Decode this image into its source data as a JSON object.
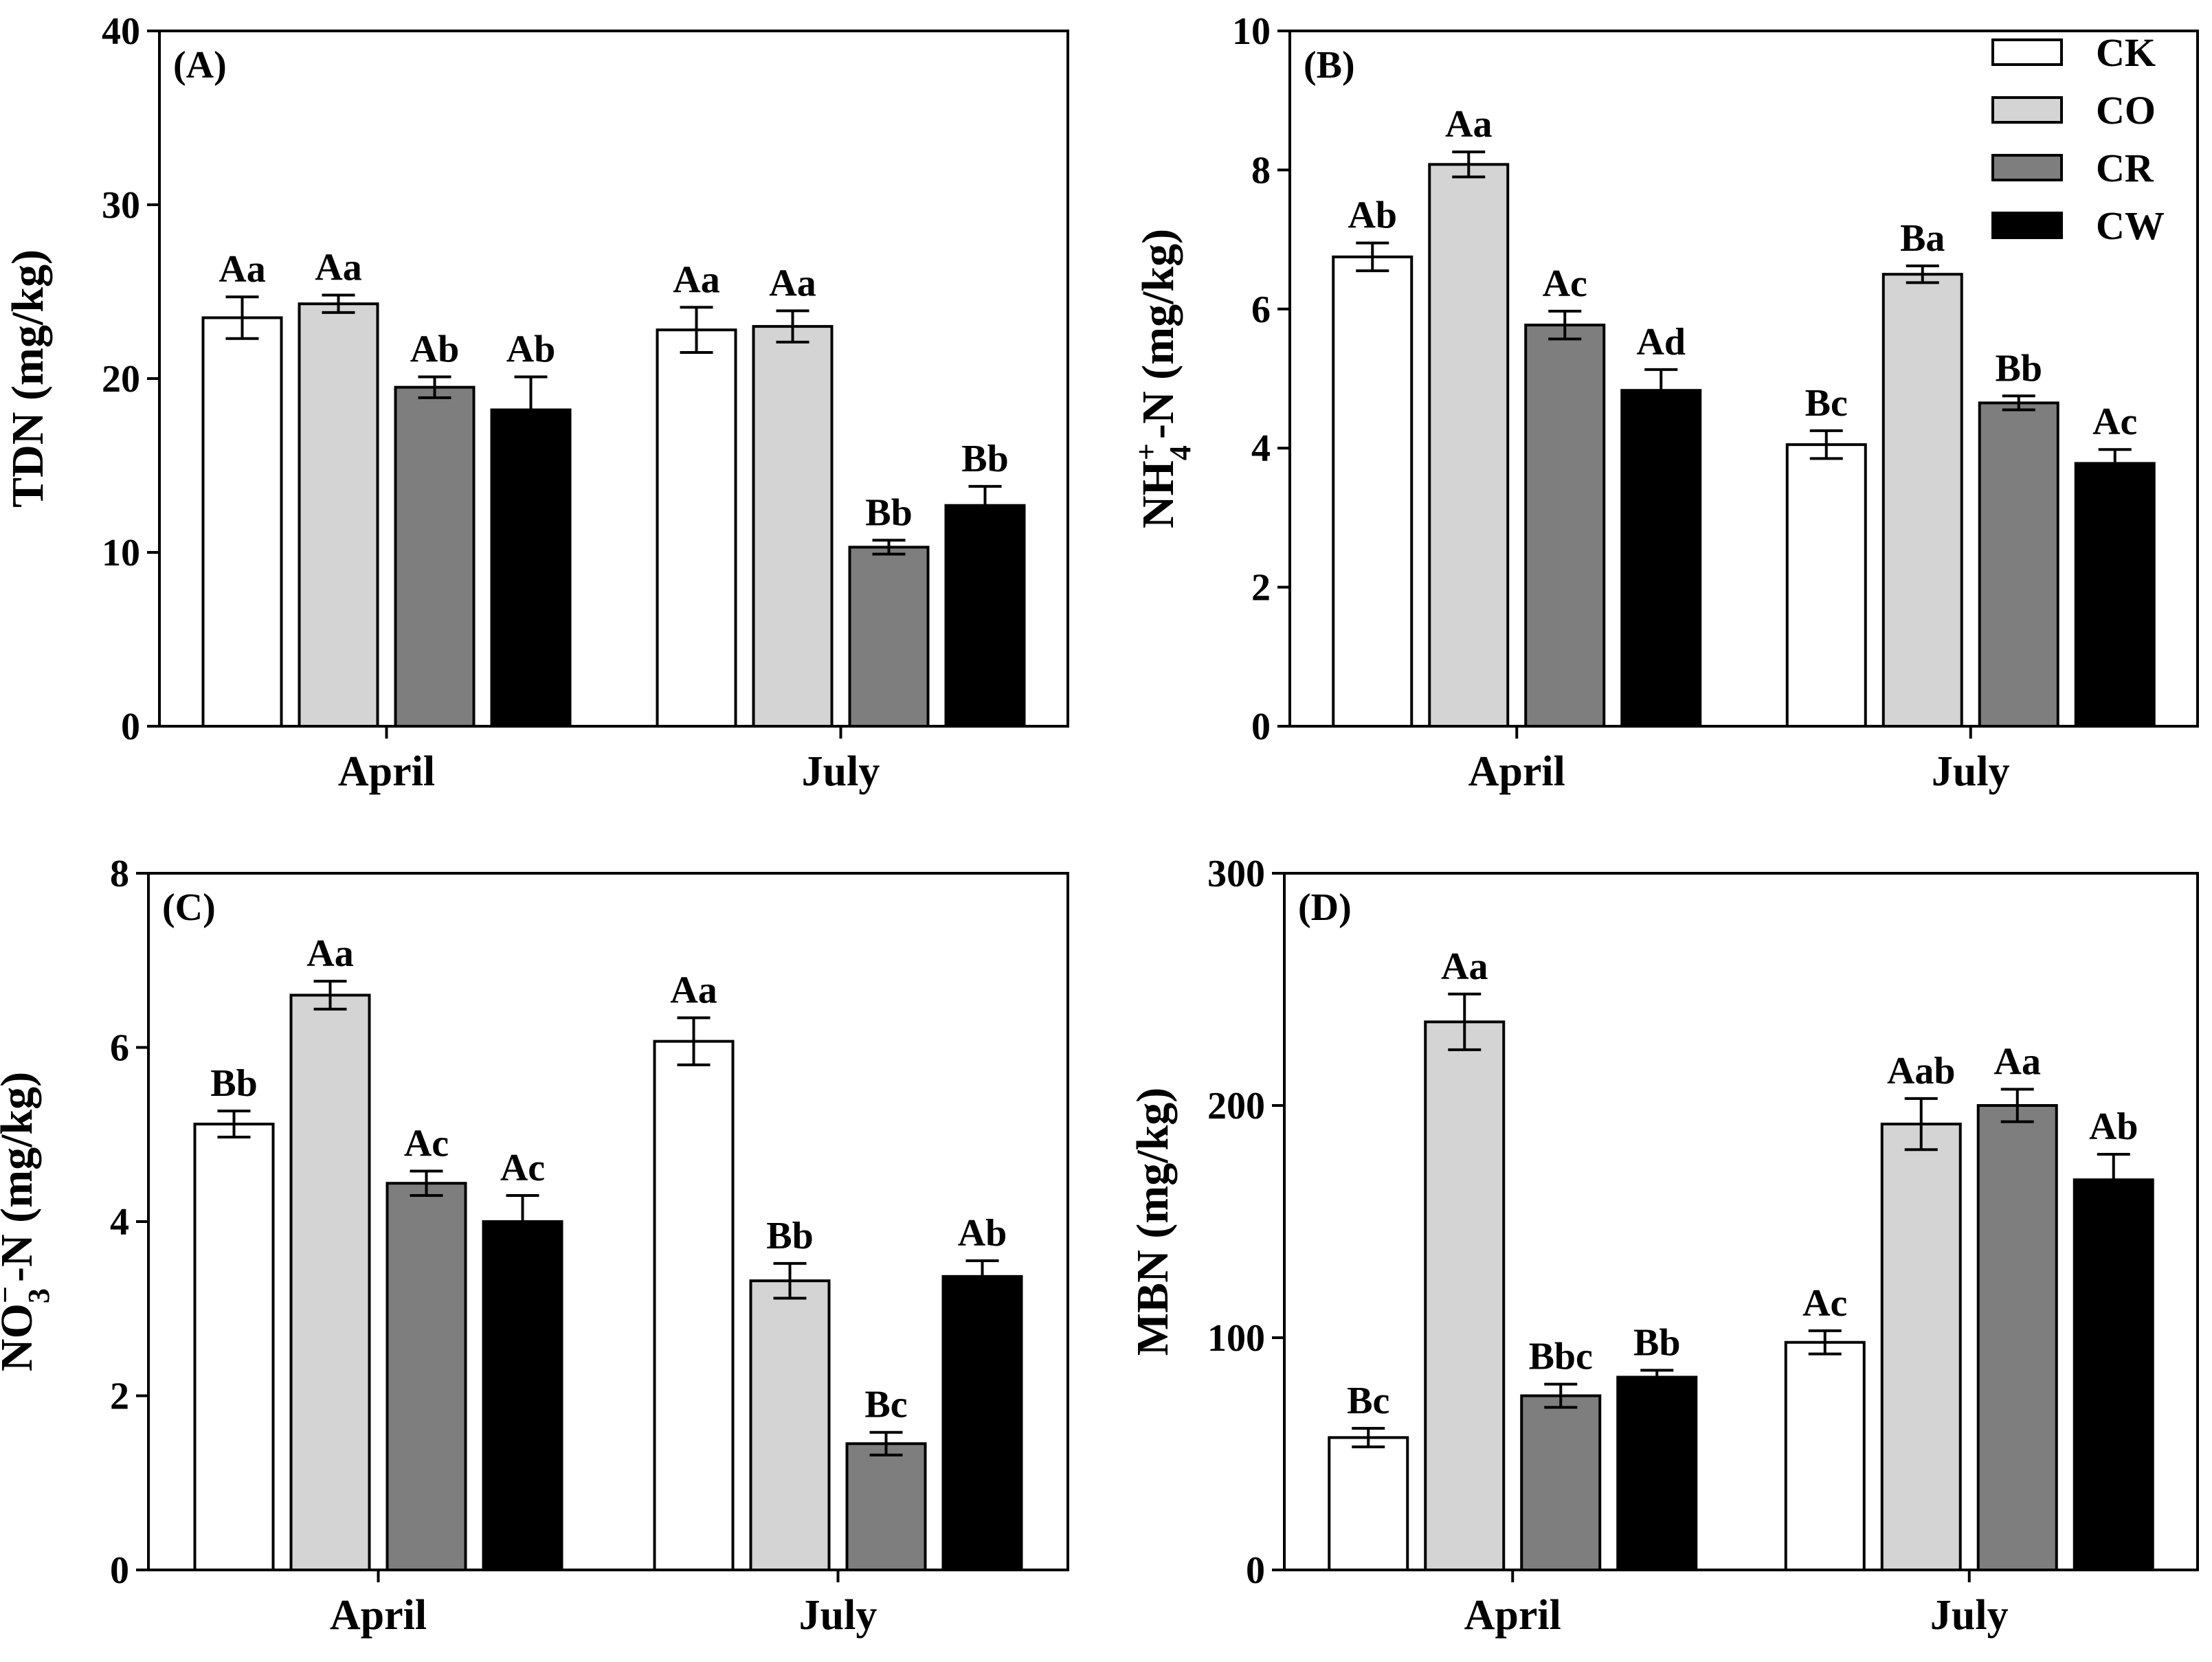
{
  "colors": {
    "CK": "#ffffff",
    "CO": "#d4d4d4",
    "CR": "#7e7e7e",
    "CW": "#000000"
  },
  "chart_data": [
    {
      "type": "bar",
      "panel": "(A)",
      "ylabel": "TDN (mg/kg)",
      "ylim": [
        0,
        40
      ],
      "yticks": [
        0,
        10,
        20,
        30,
        40
      ],
      "categories": [
        "April",
        "July"
      ],
      "series": [
        {
          "name": "CK",
          "values": [
            23.5,
            22.8
          ],
          "errors": [
            1.2,
            1.3
          ],
          "labels": [
            "Aa",
            "Aa"
          ]
        },
        {
          "name": "CO",
          "values": [
            24.3,
            23.0
          ],
          "errors": [
            0.5,
            0.9
          ],
          "labels": [
            "Aa",
            "Aa"
          ]
        },
        {
          "name": "CR",
          "values": [
            19.5,
            10.3
          ],
          "errors": [
            0.6,
            0.4
          ],
          "labels": [
            "Ab",
            "Bb"
          ]
        },
        {
          "name": "CW",
          "values": [
            18.2,
            12.7
          ],
          "errors": [
            1.9,
            1.1
          ],
          "labels": [
            "Ab",
            "Bb"
          ]
        }
      ]
    },
    {
      "type": "bar",
      "panel": "(B)",
      "ylabel_main": "NH",
      "ylabel_sub": "4",
      "ylabel_sup": "+",
      "ylabel_rest": "-N (mg/kg)",
      "ylim": [
        0,
        10
      ],
      "yticks": [
        0,
        2,
        4,
        6,
        8,
        10
      ],
      "categories": [
        "April",
        "July"
      ],
      "legend": [
        "CK",
        "CO",
        "CR",
        "CW"
      ],
      "series": [
        {
          "name": "CK",
          "values": [
            6.75,
            4.05
          ],
          "errors": [
            0.2,
            0.2
          ],
          "labels": [
            "Ab",
            "Bc"
          ]
        },
        {
          "name": "CO",
          "values": [
            8.08,
            6.5
          ],
          "errors": [
            0.18,
            0.12
          ],
          "labels": [
            "Aa",
            "Ba"
          ]
        },
        {
          "name": "CR",
          "values": [
            5.77,
            4.65
          ],
          "errors": [
            0.2,
            0.1
          ],
          "labels": [
            "Ac",
            "Bb"
          ]
        },
        {
          "name": "CW",
          "values": [
            4.83,
            3.78
          ],
          "errors": [
            0.3,
            0.2
          ],
          "labels": [
            "Ad",
            "Ac"
          ]
        }
      ]
    },
    {
      "type": "bar",
      "panel": "(C)",
      "ylabel_main": "NO",
      "ylabel_sub": "3",
      "ylabel_sup": "−",
      "ylabel_rest": "-N (mg/kg)",
      "ylim": [
        0,
        8
      ],
      "yticks": [
        0,
        2,
        4,
        6,
        8
      ],
      "categories": [
        "April",
        "July"
      ],
      "series": [
        {
          "name": "CK",
          "values": [
            5.12,
            6.07
          ],
          "errors": [
            0.15,
            0.27
          ],
          "labels": [
            "Bb",
            "Aa"
          ]
        },
        {
          "name": "CO",
          "values": [
            6.6,
            3.32
          ],
          "errors": [
            0.16,
            0.2
          ],
          "labels": [
            "Aa",
            "Bb"
          ]
        },
        {
          "name": "CR",
          "values": [
            4.44,
            1.45
          ],
          "errors": [
            0.14,
            0.13
          ],
          "labels": [
            "Ac",
            "Bc"
          ]
        },
        {
          "name": "CW",
          "values": [
            4.0,
            3.37
          ],
          "errors": [
            0.3,
            0.18
          ],
          "labels": [
            "Ac",
            "Ab"
          ]
        }
      ]
    },
    {
      "type": "bar",
      "panel": "(D)",
      "ylabel": "MBN (mg/kg)",
      "ylim": [
        0,
        300
      ],
      "yticks": [
        0,
        100,
        200,
        300
      ],
      "categories": [
        "April",
        "July"
      ],
      "series": [
        {
          "name": "CK",
          "values": [
            57,
            98
          ],
          "errors": [
            4,
            5
          ],
          "labels": [
            "Bc",
            "Ac"
          ]
        },
        {
          "name": "CO",
          "values": [
            236,
            192
          ],
          "errors": [
            12,
            11
          ],
          "labels": [
            "Aa",
            "Aab"
          ]
        },
        {
          "name": "CR",
          "values": [
            75,
            200
          ],
          "errors": [
            5,
            7
          ],
          "labels": [
            "Bbc",
            "Aa"
          ]
        },
        {
          "name": "CW",
          "values": [
            83,
            168
          ],
          "errors": [
            3,
            11
          ],
          "labels": [
            "Bb",
            "Ab"
          ]
        }
      ]
    }
  ]
}
